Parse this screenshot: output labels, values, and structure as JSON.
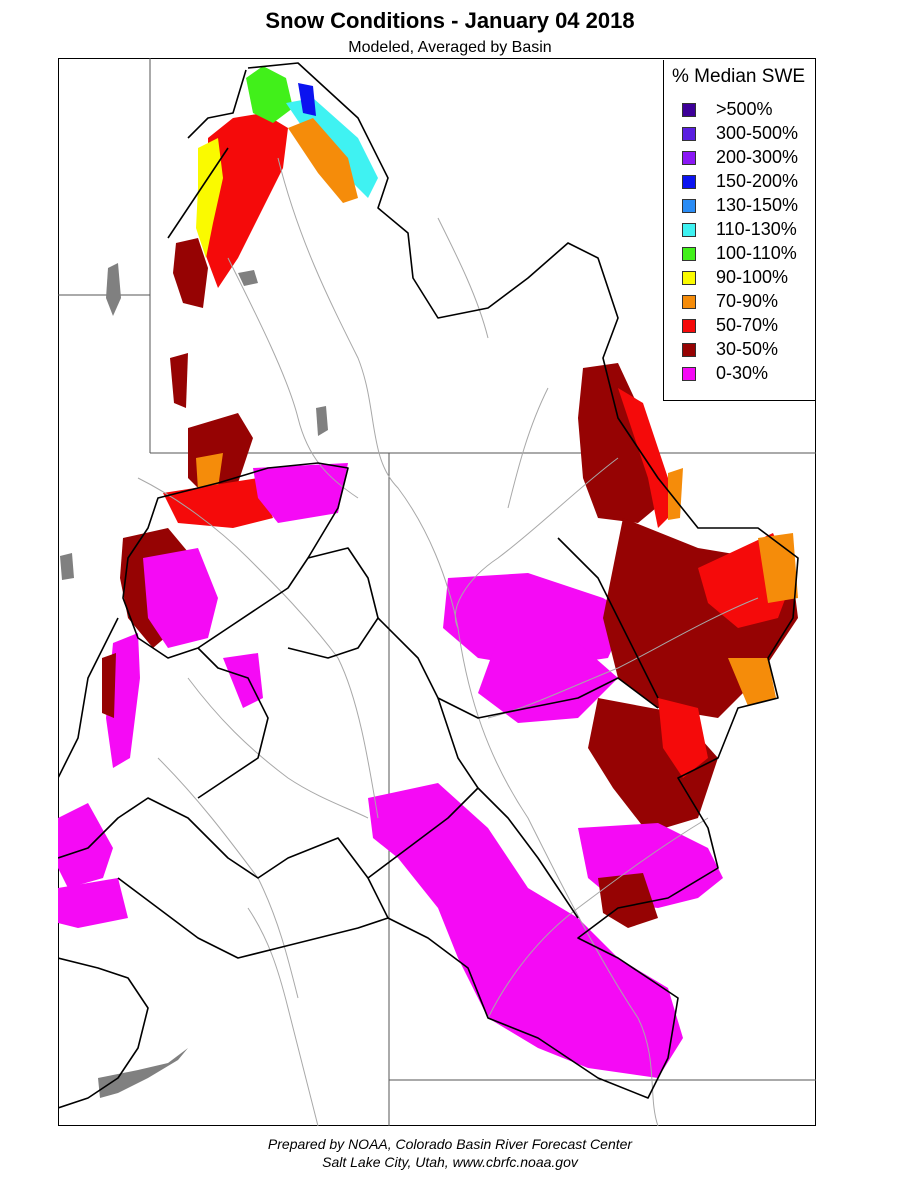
{
  "header": {
    "title": "Snow Conditions - January 04 2018",
    "subtitle": "Modeled, Averaged by Basin"
  },
  "legend": {
    "title": "% Median SWE",
    "items": [
      {
        "label": ">500%",
        "color": "#3d0099"
      },
      {
        "label": "300-500%",
        "color": "#5a1fe0"
      },
      {
        "label": "200-300%",
        "color": "#8a17f5"
      },
      {
        "label": "150-200%",
        "color": "#0b13f0"
      },
      {
        "label": "130-150%",
        "color": "#2a8cf5"
      },
      {
        "label": "110-130%",
        "color": "#3ff2f2"
      },
      {
        "label": "100-110%",
        "color": "#41f01a"
      },
      {
        "label": "90-100%",
        "color": "#fafa00"
      },
      {
        "label": "70-90%",
        "color": "#f58c0a"
      },
      {
        "label": "50-70%",
        "color": "#f50a0a"
      },
      {
        "label": "30-50%",
        "color": "#960303"
      },
      {
        "label": "0-30%",
        "color": "#f50af5"
      }
    ]
  },
  "colors": {
    "water": "#808080",
    "rivers": "#a8a8a8",
    "basin_outline": "#000000",
    "state_lines": "#555555"
  },
  "footer": {
    "line1": "Prepared by NOAA, Colorado Basin River Forecast Center",
    "line2": "Salt Lake City, Utah, www.cbrfc.noaa.gov"
  }
}
